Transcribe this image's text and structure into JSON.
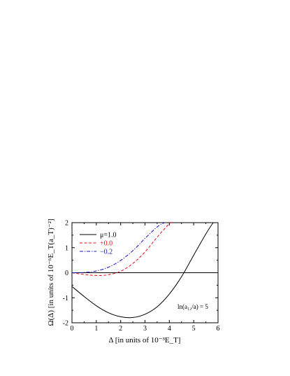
{
  "chart_data": {
    "type": "line",
    "xlabel": "Δ [in units of 10⁻³E_T]",
    "ylabel": "Ω(Δ)  [in units of 10⁻⁶E_T(a_T)⁻²]",
    "xlim": [
      0,
      6
    ],
    "ylim": [
      -2,
      2
    ],
    "xticks": [
      0,
      1,
      2,
      3,
      4,
      5,
      6
    ],
    "yticks": [
      -2,
      -1,
      0,
      1,
      2
    ],
    "grid": false,
    "legend_position": "top-left",
    "annotation": "ln(a₁₂/a) = 5",
    "series": [
      {
        "name": "μ=1.0",
        "color": "#000000",
        "dash": "solid",
        "x": [
          0.0,
          0.5,
          1.0,
          1.5,
          2.0,
          2.5,
          3.0,
          3.5,
          4.0,
          4.5,
          5.0,
          5.5,
          5.8
        ],
        "y": [
          -0.55,
          -0.95,
          -1.32,
          -1.6,
          -1.76,
          -1.79,
          -1.66,
          -1.36,
          -0.85,
          -0.16,
          0.7,
          1.55,
          2.0
        ]
      },
      {
        "name": "+0.0",
        "color": "#e8101a",
        "dash": "dashed",
        "x": [
          0.0,
          0.5,
          1.0,
          1.5,
          2.0,
          2.5,
          3.0,
          3.5,
          4.0,
          4.1
        ],
        "y": [
          0.0,
          -0.07,
          -0.11,
          -0.08,
          0.06,
          0.37,
          0.83,
          1.42,
          1.96,
          2.0
        ]
      },
      {
        "name": "−0.2",
        "color": "#1010d0",
        "dash": "dashdot",
        "x": [
          0.0,
          0.5,
          1.0,
          1.5,
          2.0,
          2.5,
          3.0,
          3.5,
          3.8
        ],
        "y": [
          0.0,
          0.01,
          0.07,
          0.22,
          0.49,
          0.88,
          1.37,
          1.83,
          2.0
        ]
      }
    ]
  }
}
